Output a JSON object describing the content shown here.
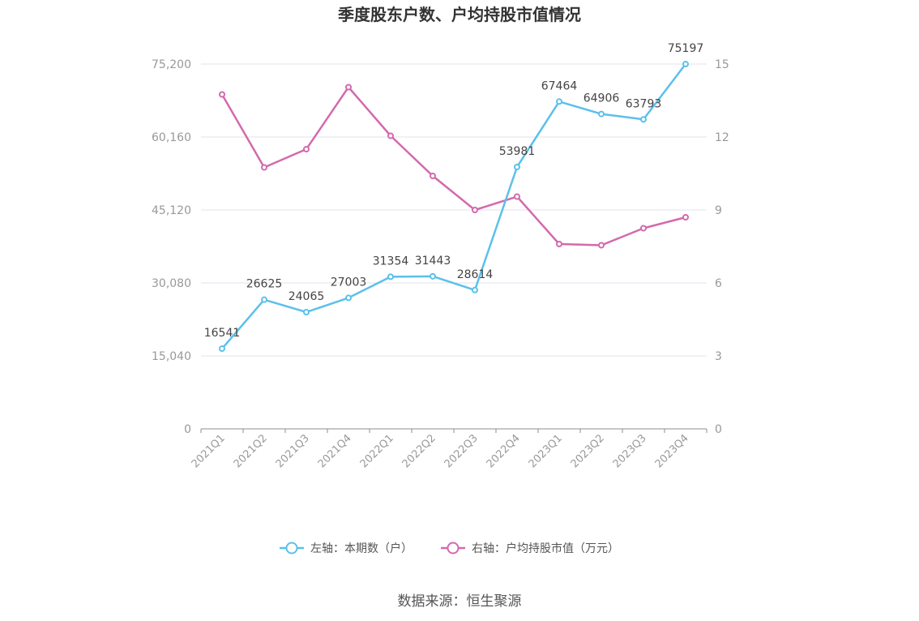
{
  "chart_data": {
    "type": "line",
    "title": "季度股东户数、户均持股市值情况",
    "categories": [
      "2021Q1",
      "2021Q2",
      "2021Q3",
      "2021Q4",
      "2022Q1",
      "2022Q2",
      "2022Q3",
      "2022Q4",
      "2023Q1",
      "2023Q2",
      "2023Q3",
      "2023Q4"
    ],
    "y_left": {
      "ticks": [
        "0",
        "15,040",
        "30,080",
        "45,120",
        "60,160",
        "75,200"
      ],
      "range": [
        0,
        75200
      ]
    },
    "y_right": {
      "ticks": [
        "0",
        "3",
        "6",
        "9",
        "12",
        "15"
      ],
      "range": [
        0,
        15
      ]
    },
    "series": [
      {
        "name": "左轴：本期数（户）",
        "axis": "left",
        "color": "#5bc0eb",
        "values": [
          16541,
          26625,
          24065,
          27003,
          31354,
          31443,
          28614,
          53981,
          67464,
          64906,
          63793,
          75197
        ],
        "labels": [
          "16541",
          "26625",
          "24065",
          "27003",
          "31354",
          "31443",
          "28614",
          "53981",
          "67464",
          "64906",
          "63793",
          "75197"
        ]
      },
      {
        "name": "右轴：户均持股市值（万元）",
        "axis": "right",
        "color": "#d36aad",
        "values": [
          13.75,
          10.75,
          11.5,
          14.05,
          12.05,
          10.4,
          9.0,
          9.55,
          7.6,
          7.55,
          8.25,
          8.7
        ]
      }
    ],
    "grid": true,
    "legend_position": "bottom"
  },
  "source": "数据来源：恒生聚源"
}
